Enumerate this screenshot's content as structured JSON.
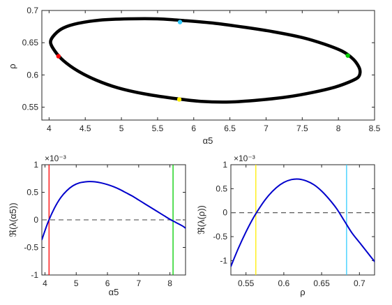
{
  "chart_data": [
    {
      "type": "line",
      "xlabel": "α5",
      "ylabel": "ρ",
      "xlim": [
        3.9,
        8.5
      ],
      "ylim": [
        0.53,
        0.7
      ],
      "xticks": [
        4,
        4.5,
        5,
        5.5,
        6,
        6.5,
        7,
        7.5,
        8,
        8.5
      ],
      "yticks": [
        0.55,
        0.6,
        0.65,
        0.7
      ],
      "ytick_labels": [
        "0.55",
        "0.6",
        "0.65",
        "0.7"
      ],
      "series": [
        {
          "color": "#000000",
          "closed": true,
          "x": [
            4.02,
            4.08,
            4.2,
            4.4,
            4.7,
            5.1,
            5.5,
            5.9,
            6.3,
            6.7,
            7.1,
            7.5,
            7.8,
            8.05,
            8.2,
            8.28,
            8.3,
            8.27,
            8.15,
            7.95,
            7.65,
            7.3,
            6.9,
            6.5,
            6.1,
            5.7,
            5.3,
            4.95,
            4.65,
            4.4,
            4.2,
            4.08
          ],
          "y": [
            0.651,
            0.663,
            0.673,
            0.68,
            0.685,
            0.687,
            0.687,
            0.684,
            0.68,
            0.674,
            0.667,
            0.658,
            0.648,
            0.637,
            0.625,
            0.613,
            0.604,
            0.596,
            0.589,
            0.581,
            0.573,
            0.566,
            0.561,
            0.558,
            0.559,
            0.564,
            0.571,
            0.58,
            0.592,
            0.606,
            0.622,
            0.637
          ]
        }
      ],
      "markers": [
        {
          "x": 5.81,
          "y": 0.682,
          "color": "#33ccff"
        },
        {
          "x": 8.13,
          "y": 0.63,
          "color": "#00cc00"
        },
        {
          "x": 5.8,
          "y": 0.562,
          "color": "#ffee00"
        },
        {
          "x": 4.13,
          "y": 0.629,
          "color": "#ff0000"
        }
      ]
    },
    {
      "type": "line",
      "xlabel": "α5",
      "ylabel": "ℜ(λ(α5))",
      "exponent_label": "×10⁻³",
      "xlim": [
        3.9,
        8.5
      ],
      "ylim": [
        -1,
        1
      ],
      "xticks": [
        4,
        5,
        6,
        7,
        8
      ],
      "yticks": [
        -1,
        -0.5,
        0,
        0.5,
        1
      ],
      "ytick_labels": [
        "-1",
        "-0.5",
        "0",
        "0.5",
        "1"
      ],
      "series": [
        {
          "color": "#0000cc",
          "x": [
            3.9,
            4.1,
            4.3,
            4.5,
            4.7,
            4.9,
            5.1,
            5.3,
            5.45,
            5.6,
            5.8,
            6.0,
            6.2,
            6.4,
            6.6,
            6.8,
            7.0,
            7.2,
            7.4,
            7.6,
            7.8,
            8.0,
            8.2,
            8.4,
            8.5
          ],
          "y": [
            -0.36,
            -0.04,
            0.21,
            0.4,
            0.53,
            0.62,
            0.67,
            0.69,
            0.695,
            0.69,
            0.67,
            0.64,
            0.6,
            0.55,
            0.49,
            0.43,
            0.36,
            0.29,
            0.22,
            0.15,
            0.08,
            0.01,
            -0.05,
            -0.11,
            -0.15
          ]
        }
      ],
      "reference_lines": [
        {
          "axis": "y",
          "value": 0,
          "style": "dashed",
          "color": "#666666"
        },
        {
          "axis": "x",
          "value": 4.13,
          "color": "#ff0000"
        },
        {
          "axis": "x",
          "value": 8.1,
          "color": "#00cc00"
        }
      ]
    },
    {
      "type": "line",
      "xlabel": "ρ",
      "ylabel": "ℜ(λ(ρ))",
      "exponent_label": "×10⁻³",
      "xlim": [
        0.53,
        0.72
      ],
      "ylim": [
        -1.3,
        1
      ],
      "xticks": [
        0.55,
        0.6,
        0.65,
        0.7
      ],
      "xtick_labels": [
        "0.55",
        "0.6",
        "0.65",
        "0.7"
      ],
      "yticks": [
        -1,
        -0.5,
        0,
        0.5,
        1
      ],
      "ytick_labels": [
        "-1",
        "-0.5",
        "0",
        "0.5",
        "1"
      ],
      "series": [
        {
          "color": "#0000cc",
          "x": [
            0.53,
            0.54,
            0.55,
            0.56,
            0.57,
            0.58,
            0.59,
            0.6,
            0.61,
            0.62,
            0.63,
            0.64,
            0.65,
            0.66,
            0.67,
            0.68,
            0.69,
            0.7,
            0.71,
            0.72
          ],
          "y": [
            -1.12,
            -0.74,
            -0.4,
            -0.1,
            0.15,
            0.36,
            0.52,
            0.63,
            0.69,
            0.7,
            0.66,
            0.58,
            0.45,
            0.28,
            0.08,
            -0.17,
            -0.42,
            -0.62,
            -0.82,
            -1.02
          ]
        }
      ],
      "reference_lines": [
        {
          "axis": "y",
          "value": 0,
          "style": "dashed",
          "color": "#666666"
        },
        {
          "axis": "x",
          "value": 0.563,
          "color": "#ffee00"
        },
        {
          "axis": "x",
          "value": 0.683,
          "color": "#33ccff"
        }
      ]
    }
  ]
}
